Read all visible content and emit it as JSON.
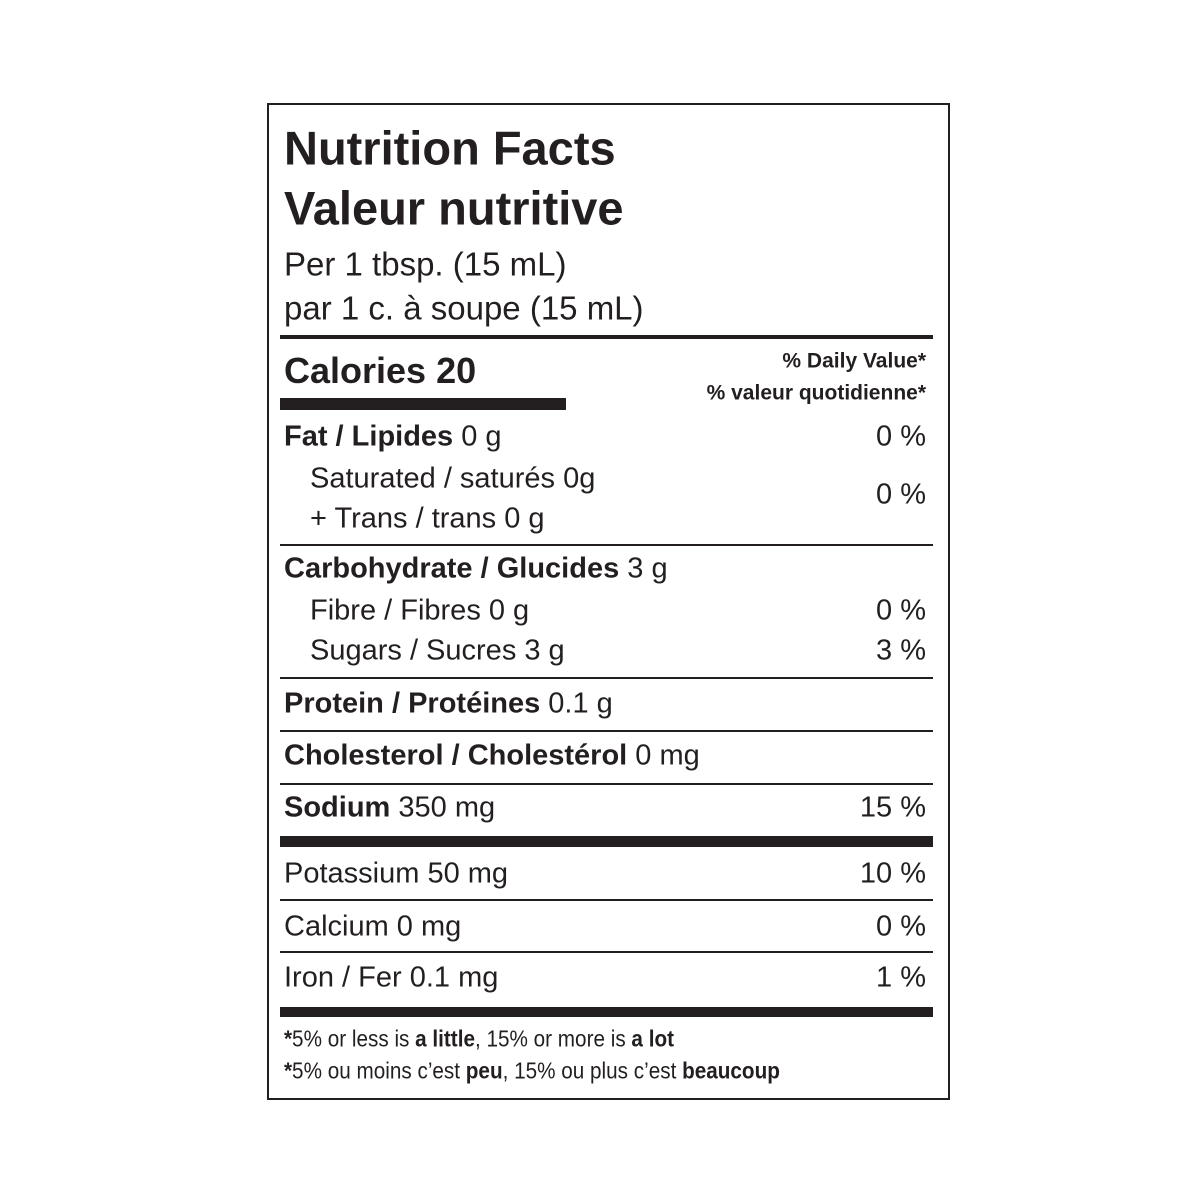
{
  "header": {
    "title_en": "Nutrition Facts",
    "title_fr": "Valeur nutritive",
    "serving_en": "Per 1 tbsp. (15 mL)",
    "serving_fr": "par 1 c. à soupe (15 mL)"
  },
  "calories": "Calories 20",
  "daily_value": {
    "en": "% Daily Value*",
    "fr": "% valeur quotidienne*"
  },
  "nutrients": {
    "fat": {
      "name": "Fat / Lipides",
      "amount": "0 g",
      "dv": "0 %"
    },
    "saturated_trans": {
      "saturated": "Saturated / saturés 0g",
      "trans": "+ Trans / trans 0 g",
      "dv": "0 %"
    },
    "carbohydrate": {
      "name": "Carbohydrate / Glucides",
      "amount": "3 g"
    },
    "fibre": {
      "name": "Fibre / Fibres 0 g",
      "dv": "0 %"
    },
    "sugars": {
      "name": "Sugars / Sucres 3 g",
      "dv": "3 %"
    },
    "protein": {
      "name": "Protein / Protéines",
      "amount": "0.1 g"
    },
    "cholesterol": {
      "name": "Cholesterol / Cholestérol",
      "amount": "0 mg"
    },
    "sodium": {
      "name": "Sodium",
      "amount": "350 mg",
      "dv": "15 %"
    },
    "potassium": {
      "name": "Potassium 50 mg",
      "dv": "10 %"
    },
    "calcium": {
      "name": "Calcium 0 mg",
      "dv": "0 %"
    },
    "iron": {
      "name": "Iron / Fer 0.1 mg",
      "dv": "1 %"
    }
  },
  "footnote": {
    "en": [
      "*",
      "5% or less is ",
      "a little",
      ", 15% or more is ",
      "a lot"
    ],
    "fr": [
      "*",
      "5% ou moins c’est ",
      "peu",
      ", 15% ou plus c’est ",
      "beaucoup"
    ]
  }
}
